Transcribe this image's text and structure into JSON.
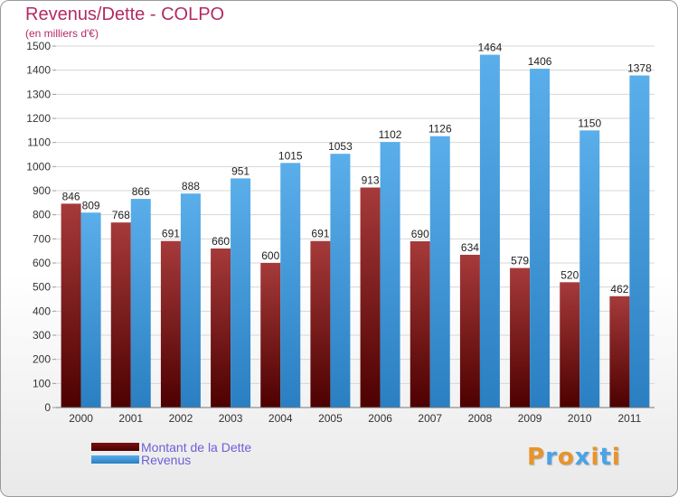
{
  "header": {
    "title": "Revenus/Dette - COLPO",
    "subtitle": "(en milliers d'€)"
  },
  "legend": [
    {
      "label": "Montant de la Dette",
      "color": "#8b1a1a"
    },
    {
      "label": "Revenus",
      "color": "#4aa3e6"
    }
  ],
  "logo": {
    "text": "Proxiti",
    "letters": [
      "P",
      "r",
      "o",
      "x",
      "i",
      "t",
      "i"
    ],
    "colors": [
      "#e8942a",
      "#4aa3e6",
      "#e8942a",
      "#4aa3e6",
      "#e8942a",
      "#4aa3e6",
      "#e8942a"
    ]
  },
  "chart_data": {
    "type": "bar",
    "title": "Revenus/Dette - COLPO",
    "subtitle": "(en milliers d'€)",
    "xlabel": "",
    "ylabel": "",
    "categories": [
      "2000",
      "2001",
      "2002",
      "2003",
      "2004",
      "2005",
      "2006",
      "2007",
      "2008",
      "2009",
      "2010",
      "2011"
    ],
    "series": [
      {
        "name": "Montant de la Dette",
        "color": "#8b1a1a",
        "values": [
          846,
          768,
          691,
          660,
          600,
          691,
          913,
          690,
          634,
          579,
          520,
          462
        ]
      },
      {
        "name": "Revenus",
        "color": "#4aa3e6",
        "values": [
          809,
          866,
          888,
          951,
          1015,
          1053,
          1102,
          1126,
          1464,
          1406,
          1150,
          1378
        ]
      }
    ],
    "ylim": [
      0,
      1500
    ],
    "yticks": [
      0,
      100,
      200,
      300,
      400,
      500,
      600,
      700,
      800,
      900,
      1000,
      1100,
      1200,
      1300,
      1400,
      1500
    ],
    "grid": true,
    "legend_position": "bottom-left"
  }
}
